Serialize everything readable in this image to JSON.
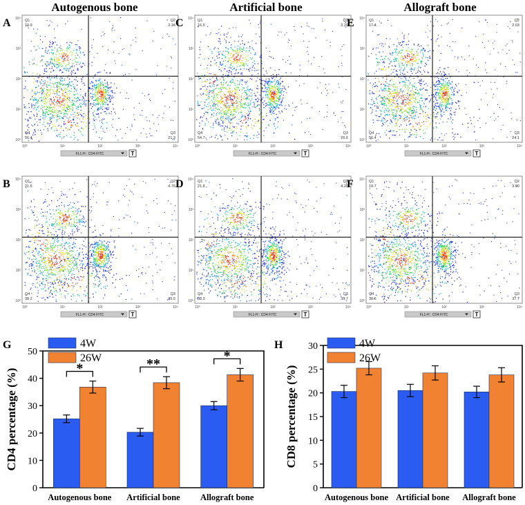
{
  "colors": {
    "cd4_4w": "#2a5cf2",
    "cd4_26w": "#f08232",
    "barstroke": "#1e2f55"
  },
  "columns": [
    "Autogenous bone",
    "Artificial bone",
    "Allograft bone"
  ],
  "flow": {
    "axis_label": "FL1-H : CD4 FITC",
    "t_label": "T",
    "tick_labels": [
      "10⁰",
      "10¹",
      "10²",
      "10³",
      "10⁴"
    ],
    "panels": [
      {
        "letter": "A",
        "q1": "Q1",
        "q1v": "19.9",
        "q2": "Q2",
        "q2v": "2.34",
        "q3": "Q3",
        "q3v": "21.3",
        "q4": "Q4",
        "q4v": "56.4"
      },
      {
        "letter": "C",
        "q1": "Q1",
        "q1v": "16.5",
        "q2": "Q2",
        "q2v": "2.20",
        "q3": "Q3",
        "q3v": "26.6",
        "q4": "Q4",
        "q4v": "54.7"
      },
      {
        "letter": "E",
        "q1": "Q1",
        "q1v": "17.4",
        "q2": "Q2",
        "q2v": "2.03",
        "q3": "Q3",
        "q3v": "24.1",
        "q4": "Q4",
        "q4v": "56.4"
      },
      {
        "letter": "B",
        "q1": "Q1",
        "q1v": "21.6",
        "q2": "Q2",
        "q2v": "4.76",
        "q3": "Q3",
        "q3v": "35.5",
        "q4": "Q4",
        "q4v": "38.2"
      },
      {
        "letter": "D",
        "q1": "Q1",
        "q1v": "21.8",
        "q2": "Q2",
        "q2v": "4.20",
        "q3": "Q3",
        "q3v": "35.7",
        "q4": "Q4",
        "q4v": "38.3"
      },
      {
        "letter": "F",
        "q1": "Q1",
        "q1v": "19.7",
        "q2": "Q2",
        "q2v": "3.90",
        "q3": "Q3",
        "q3v": "37.7",
        "q4": "Q4",
        "q4v": "38.6"
      }
    ]
  },
  "chart_data": [
    {
      "panel": "G",
      "type": "bar",
      "ylabel": "CD4 percentage (%)",
      "ylim": [
        0,
        50
      ],
      "yticks": [
        "0",
        "10",
        "20",
        "30",
        "40",
        "50"
      ],
      "categories": [
        "Autogenous bone",
        "Artificial bone",
        "Allograft bone"
      ],
      "series": [
        {
          "name": "4W",
          "values": [
            25.2,
            20.3,
            30.0
          ],
          "errors": [
            1.4,
            1.4,
            1.5
          ]
        },
        {
          "name": "26W",
          "values": [
            36.8,
            38.4,
            41.3
          ],
          "errors": [
            2.2,
            2.2,
            2.3
          ]
        }
      ],
      "significance": [
        "*",
        "**",
        "*"
      ],
      "legend": "top-left"
    },
    {
      "panel": "H",
      "type": "bar",
      "ylabel": "CD8 percentage (%)",
      "ylim": [
        0,
        30
      ],
      "yticks": [
        "0",
        "5",
        "10",
        "15",
        "20",
        "25",
        "30"
      ],
      "categories": [
        "Autogenous bone",
        "Artificial bone",
        "Allograft bone"
      ],
      "series": [
        {
          "name": "4W",
          "values": [
            20.3,
            20.5,
            20.2
          ],
          "errors": [
            1.3,
            1.3,
            1.2
          ]
        },
        {
          "name": "26W",
          "values": [
            25.2,
            24.2,
            23.8
          ],
          "errors": [
            1.4,
            1.5,
            1.5
          ]
        }
      ],
      "significance": [],
      "legend": "top-left"
    }
  ]
}
